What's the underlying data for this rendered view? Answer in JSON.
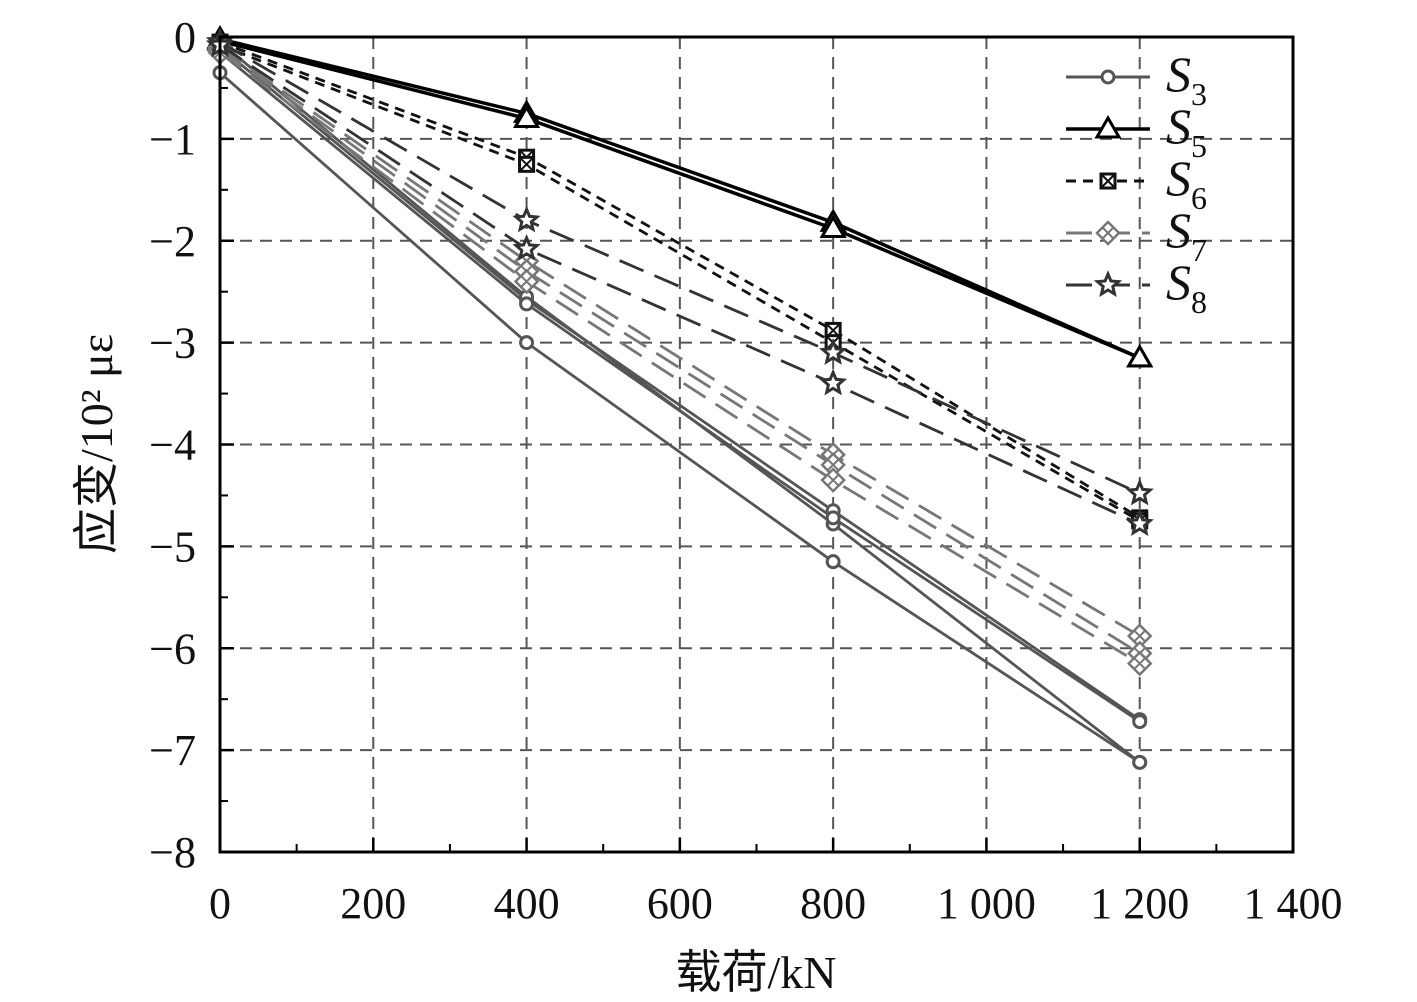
{
  "chart_data": {
    "type": "line",
    "title": "",
    "xlabel": "载荷/kN",
    "ylabel": "应变/10² με",
    "xlim": [
      0,
      1400
    ],
    "ylim": [
      -8,
      0
    ],
    "xticks": [
      0,
      200,
      400,
      600,
      800,
      1000,
      1200,
      1400
    ],
    "xtick_labels": [
      "0",
      "200",
      "400",
      "600",
      "800",
      "1 000",
      "1 200",
      "1 400"
    ],
    "yticks": [
      0,
      -1,
      -2,
      -3,
      -4,
      -5,
      -6,
      -7,
      -8
    ],
    "ytick_labels": [
      "0",
      "−1",
      "−2",
      "−3",
      "−4",
      "−5",
      "−6",
      "−7",
      "−8"
    ],
    "grid": true,
    "legend_position": "top-right",
    "x": [
      0,
      400,
      800,
      1200
    ],
    "series": [
      {
        "group": "S3",
        "marker": "circle",
        "dash": "solid",
        "color": "#555555",
        "values": [
          -0.35,
          -3.0,
          -5.15,
          -7.12
        ]
      },
      {
        "group": "S3",
        "marker": "circle",
        "dash": "solid",
        "color": "#555555",
        "values": [
          -0.1,
          -2.58,
          -4.65,
          -6.7
        ]
      },
      {
        "group": "S3",
        "marker": "circle",
        "dash": "solid",
        "color": "#555555",
        "values": [
          -0.05,
          -2.55,
          -4.78,
          -7.12
        ]
      },
      {
        "group": "S3",
        "marker": "circle",
        "dash": "solid",
        "color": "#555555",
        "values": [
          -0.15,
          -2.62,
          -4.72,
          -6.72
        ]
      },
      {
        "group": "S5",
        "marker": "triangle",
        "dash": "solid",
        "color": "#000000",
        "values": [
          -0.02,
          -0.75,
          -1.82,
          -3.15
        ]
      },
      {
        "group": "S5",
        "marker": "triangle",
        "dash": "solid",
        "color": "#000000",
        "values": [
          -0.04,
          -0.8,
          -1.88,
          -3.15
        ]
      },
      {
        "group": "S6",
        "marker": "square-x",
        "dash": "short",
        "color": "#111111",
        "values": [
          -0.05,
          -1.18,
          -2.88,
          -4.72
        ]
      },
      {
        "group": "S6",
        "marker": "square-x",
        "dash": "short",
        "color": "#111111",
        "values": [
          -0.08,
          -1.25,
          -3.0,
          -4.75
        ]
      },
      {
        "group": "S7",
        "marker": "diamond-x",
        "dash": "long",
        "color": "#777777",
        "values": [
          -0.1,
          -2.2,
          -4.1,
          -5.88
        ]
      },
      {
        "group": "S7",
        "marker": "diamond-x",
        "dash": "long",
        "color": "#777777",
        "values": [
          -0.12,
          -2.3,
          -4.2,
          -6.05
        ]
      },
      {
        "group": "S7",
        "marker": "diamond-x",
        "dash": "long",
        "color": "#777777",
        "values": [
          -0.15,
          -2.4,
          -4.35,
          -6.15
        ]
      },
      {
        "group": "S8",
        "marker": "star",
        "dash": "long",
        "color": "#333333",
        "values": [
          -0.05,
          -1.8,
          -3.1,
          -4.48
        ]
      },
      {
        "group": "S8",
        "marker": "star",
        "dash": "long",
        "color": "#333333",
        "values": [
          -0.08,
          -2.08,
          -3.4,
          -4.78
        ]
      }
    ],
    "legend": [
      {
        "base": "S",
        "sub": "3",
        "marker": "circle",
        "dash": "solid",
        "color": "#555555"
      },
      {
        "base": "S",
        "sub": "5",
        "marker": "triangle",
        "dash": "solid",
        "color": "#000000"
      },
      {
        "base": "S",
        "sub": "6",
        "marker": "square-x",
        "dash": "short",
        "color": "#111111"
      },
      {
        "base": "S",
        "sub": "7",
        "marker": "diamond-x",
        "dash": "long",
        "color": "#777777"
      },
      {
        "base": "S",
        "sub": "8",
        "marker": "star",
        "dash": "long",
        "color": "#333333"
      }
    ]
  }
}
